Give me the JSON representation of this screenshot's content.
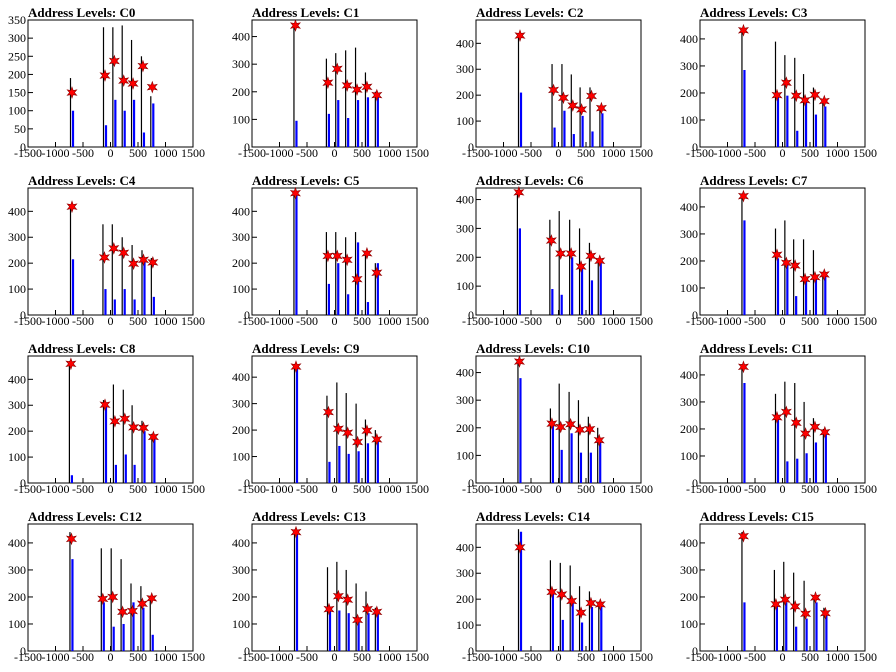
{
  "chart_data": [
    {
      "type": "bar",
      "title": "Address Levels: C0",
      "xlim": [
        -1500,
        1500
      ],
      "ylim": [
        0,
        350
      ],
      "x_ticks": [
        -1500,
        -1000,
        -500,
        0,
        500,
        1000,
        1500
      ],
      "y_ticks": [
        0,
        50,
        100,
        150,
        200,
        250,
        300,
        350
      ],
      "positions": [
        -700,
        -100,
        70,
        240,
        410,
        590,
        760
      ],
      "black_values": [
        190,
        330,
        330,
        335,
        295,
        250,
        140
      ],
      "blue_values": [
        100,
        60,
        130,
        100,
        130,
        40,
        120
      ],
      "marker_values": [
        150,
        197,
        237,
        183,
        175,
        223,
        165
      ]
    },
    {
      "type": "bar",
      "title": "Address Levels: C1",
      "xlim": [
        -1500,
        1500
      ],
      "ylim": [
        0,
        460
      ],
      "x_ticks": [
        -1500,
        -1000,
        -500,
        0,
        500,
        1000,
        1500
      ],
      "y_ticks": [
        0,
        100,
        200,
        300,
        400
      ],
      "positions": [
        -710,
        -120,
        50,
        230,
        410,
        590,
        770
      ],
      "black_values": [
        440,
        320,
        340,
        350,
        360,
        270,
        200
      ],
      "blue_values": [
        95,
        120,
        170,
        105,
        170,
        180,
        180
      ],
      "marker_values": [
        440,
        233,
        283,
        223,
        208,
        218,
        188
      ]
    },
    {
      "type": "bar",
      "title": "Address Levels: C2",
      "xlim": [
        -1500,
        1500
      ],
      "ylim": [
        0,
        490
      ],
      "x_ticks": [
        -1500,
        -1000,
        -500,
        0,
        500,
        1000,
        1500
      ],
      "y_ticks": [
        0,
        100,
        200,
        300,
        400
      ],
      "positions": [
        -700,
        -90,
        90,
        260,
        420,
        600,
        780
      ],
      "black_values": [
        440,
        320,
        320,
        280,
        230,
        230,
        160
      ],
      "blue_values": [
        210,
        75,
        140,
        50,
        120,
        60,
        130
      ],
      "marker_values": [
        430,
        220,
        190,
        160,
        145,
        197,
        150
      ]
    },
    {
      "type": "bar",
      "title": "Address Levels: C3",
      "xlim": [
        -1500,
        1500
      ],
      "ylim": [
        0,
        470
      ],
      "x_ticks": [
        -1500,
        -1000,
        -500,
        0,
        500,
        1000,
        1500
      ],
      "y_ticks": [
        0,
        100,
        200,
        300,
        400
      ],
      "positions": [
        -710,
        -100,
        70,
        250,
        410,
        590,
        760
      ],
      "black_values": [
        440,
        390,
        340,
        330,
        270,
        220,
        170
      ],
      "blue_values": [
        285,
        200,
        190,
        60,
        170,
        120,
        150
      ],
      "marker_values": [
        432,
        192,
        238,
        190,
        173,
        193,
        170
      ]
    },
    {
      "type": "bar",
      "title": "Address Levels: C4",
      "xlim": [
        -1500,
        1500
      ],
      "ylim": [
        0,
        490
      ],
      "x_ticks": [
        -1500,
        -1000,
        -500,
        0,
        500,
        1000,
        1500
      ],
      "y_ticks": [
        0,
        100,
        200,
        300,
        400
      ],
      "positions": [
        -700,
        -110,
        60,
        240,
        420,
        600,
        770
      ],
      "black_values": [
        420,
        350,
        350,
        300,
        270,
        250,
        220
      ],
      "blue_values": [
        215,
        100,
        60,
        100,
        60,
        210,
        70
      ],
      "marker_values": [
        418,
        222,
        257,
        240,
        198,
        213,
        203
      ]
    },
    {
      "type": "bar",
      "title": "Address Levels: C5",
      "xlim": [
        -1500,
        1500
      ],
      "ylim": [
        0,
        490
      ],
      "x_ticks": [
        -1500,
        -1000,
        -500,
        0,
        500,
        1000,
        1500
      ],
      "y_ticks": [
        0,
        100,
        200,
        300,
        400
      ],
      "positions": [
        -710,
        -120,
        50,
        230,
        410,
        590,
        770
      ],
      "black_values": [
        480,
        320,
        320,
        300,
        320,
        240,
        200
      ],
      "blue_values": [
        470,
        120,
        200,
        80,
        280,
        50,
        200
      ],
      "marker_values": [
        470,
        228,
        228,
        213,
        138,
        238,
        163
      ]
    },
    {
      "type": "bar",
      "title": "Address Levels: C6",
      "xlim": [
        -1500,
        1500
      ],
      "ylim": [
        0,
        440
      ],
      "x_ticks": [
        -1500,
        -1000,
        -500,
        0,
        500,
        1000,
        1500
      ],
      "y_ticks": [
        0,
        100,
        200,
        300,
        400
      ],
      "positions": [
        -720,
        -130,
        40,
        230,
        410,
        590,
        750
      ],
      "black_values": [
        430,
        330,
        360,
        330,
        300,
        250,
        190
      ],
      "blue_values": [
        300,
        90,
        70,
        200,
        170,
        120,
        180
      ],
      "marker_values": [
        425,
        258,
        213,
        213,
        168,
        205,
        188
      ]
    },
    {
      "type": "bar",
      "title": "Address Levels: C7",
      "xlim": [
        -1500,
        1500
      ],
      "ylim": [
        0,
        470
      ],
      "x_ticks": [
        -1500,
        -1000,
        -500,
        0,
        500,
        1000,
        1500
      ],
      "y_ticks": [
        0,
        100,
        200,
        300,
        400
      ],
      "positions": [
        -710,
        -100,
        70,
        230,
        410,
        590,
        760
      ],
      "black_values": [
        450,
        320,
        350,
        280,
        280,
        240,
        160
      ],
      "blue_values": [
        350,
        210,
        190,
        70,
        130,
        140,
        150
      ],
      "marker_values": [
        440,
        223,
        193,
        183,
        133,
        140,
        150
      ]
    },
    {
      "type": "bar",
      "title": "Address Levels: C8",
      "xlim": [
        -1500,
        1500
      ],
      "ylim": [
        0,
        490
      ],
      "x_ticks": [
        -1500,
        -1000,
        -500,
        0,
        500,
        1000,
        1500
      ],
      "y_ticks": [
        0,
        100,
        200,
        300,
        400
      ],
      "positions": [
        -720,
        -100,
        80,
        260,
        420,
        600,
        780
      ],
      "black_values": [
        470,
        320,
        380,
        360,
        300,
        240,
        190
      ],
      "blue_values": [
        30,
        300,
        70,
        110,
        70,
        200,
        180
      ],
      "marker_values": [
        460,
        302,
        238,
        248,
        215,
        213,
        178
      ]
    },
    {
      "type": "bar",
      "title": "Address Levels: C9",
      "xlim": [
        -1500,
        1500
      ],
      "ylim": [
        0,
        480
      ],
      "x_ticks": [
        -1500,
        -1000,
        -500,
        0,
        500,
        1000,
        1500
      ],
      "y_ticks": [
        0,
        100,
        200,
        300,
        400
      ],
      "positions": [
        -700,
        -110,
        70,
        240,
        420,
        590,
        770
      ],
      "black_values": [
        450,
        330,
        380,
        340,
        300,
        240,
        200
      ],
      "blue_values": [
        445,
        80,
        140,
        110,
        120,
        150,
        160
      ],
      "marker_values": [
        440,
        268,
        205,
        190,
        155,
        198,
        165
      ]
    },
    {
      "type": "bar",
      "title": "Address Levels: C10",
      "xlim": [
        -1500,
        1500
      ],
      "ylim": [
        0,
        460
      ],
      "x_ticks": [
        -1500,
        -1000,
        -500,
        0,
        500,
        1000,
        1500
      ],
      "y_ticks": [
        0,
        100,
        200,
        300,
        400
      ],
      "positions": [
        -710,
        -120,
        40,
        220,
        390,
        570,
        740
      ],
      "black_values": [
        440,
        270,
        360,
        330,
        300,
        240,
        200
      ],
      "blue_values": [
        380,
        210,
        120,
        180,
        110,
        110,
        150
      ],
      "marker_values": [
        440,
        215,
        203,
        213,
        193,
        195,
        155
      ]
    },
    {
      "type": "bar",
      "title": "Address Levels: C11",
      "xlim": [
        -1500,
        1500
      ],
      "ylim": [
        0,
        470
      ],
      "x_ticks": [
        -1500,
        -1000,
        -500,
        0,
        500,
        1000,
        1500
      ],
      "y_ticks": [
        0,
        100,
        200,
        300,
        400
      ],
      "positions": [
        -710,
        -100,
        70,
        250,
        420,
        590,
        770
      ],
      "black_values": [
        440,
        330,
        375,
        370,
        300,
        240,
        200
      ],
      "blue_values": [
        370,
        240,
        80,
        90,
        110,
        150,
        180
      ],
      "marker_values": [
        430,
        243,
        263,
        223,
        183,
        208,
        188
      ]
    },
    {
      "type": "bar",
      "title": "Address Levels: C12",
      "xlim": [
        -1500,
        1500
      ],
      "ylim": [
        0,
        470
      ],
      "x_ticks": [
        -1500,
        -1000,
        -500,
        0,
        500,
        1000,
        1500
      ],
      "y_ticks": [
        0,
        100,
        200,
        300,
        400
      ],
      "positions": [
        -710,
        -140,
        40,
        220,
        400,
        580,
        750
      ],
      "black_values": [
        440,
        380,
        380,
        340,
        250,
        240,
        190
      ],
      "blue_values": [
        340,
        180,
        90,
        100,
        180,
        160,
        60
      ],
      "marker_values": [
        415,
        193,
        200,
        145,
        148,
        175,
        195
      ]
    },
    {
      "type": "bar",
      "title": "Address Levels: C13",
      "xlim": [
        -1500,
        1500
      ],
      "ylim": [
        0,
        470
      ],
      "x_ticks": [
        -1500,
        -1000,
        -500,
        0,
        500,
        1000,
        1500
      ],
      "y_ticks": [
        0,
        100,
        200,
        300,
        400
      ],
      "positions": [
        -700,
        -100,
        70,
        240,
        420,
        600,
        770
      ],
      "black_values": [
        450,
        310,
        330,
        300,
        250,
        220,
        160
      ],
      "blue_values": [
        440,
        150,
        150,
        140,
        110,
        140,
        150
      ],
      "marker_values": [
        440,
        155,
        203,
        190,
        115,
        155,
        145
      ]
    },
    {
      "type": "bar",
      "title": "Address Levels: C14",
      "xlim": [
        -1500,
        1500
      ],
      "ylim": [
        0,
        490
      ],
      "x_ticks": [
        -1500,
        -1000,
        -500,
        0,
        500,
        1000,
        1500
      ],
      "y_ticks": [
        0,
        100,
        200,
        300,
        400
      ],
      "positions": [
        -700,
        -120,
        60,
        240,
        410,
        590,
        760
      ],
      "black_values": [
        470,
        350,
        340,
        330,
        250,
        230,
        190
      ],
      "blue_values": [
        460,
        220,
        120,
        190,
        110,
        170,
        180
      ],
      "marker_values": [
        400,
        228,
        218,
        193,
        148,
        185,
        180
      ]
    },
    {
      "type": "bar",
      "title": "Address Levels: C15",
      "xlim": [
        -1500,
        1500
      ],
      "ylim": [
        0,
        470
      ],
      "x_ticks": [
        -1500,
        -1000,
        -500,
        0,
        500,
        1000,
        1500
      ],
      "y_ticks": [
        0,
        100,
        200,
        300,
        400
      ],
      "positions": [
        -710,
        -120,
        50,
        230,
        420,
        600,
        780
      ],
      "black_values": [
        440,
        300,
        330,
        290,
        260,
        200,
        160
      ],
      "blue_values": [
        180,
        170,
        180,
        90,
        120,
        180,
        140
      ],
      "marker_values": [
        425,
        173,
        190,
        165,
        138,
        198,
        140
      ]
    }
  ]
}
